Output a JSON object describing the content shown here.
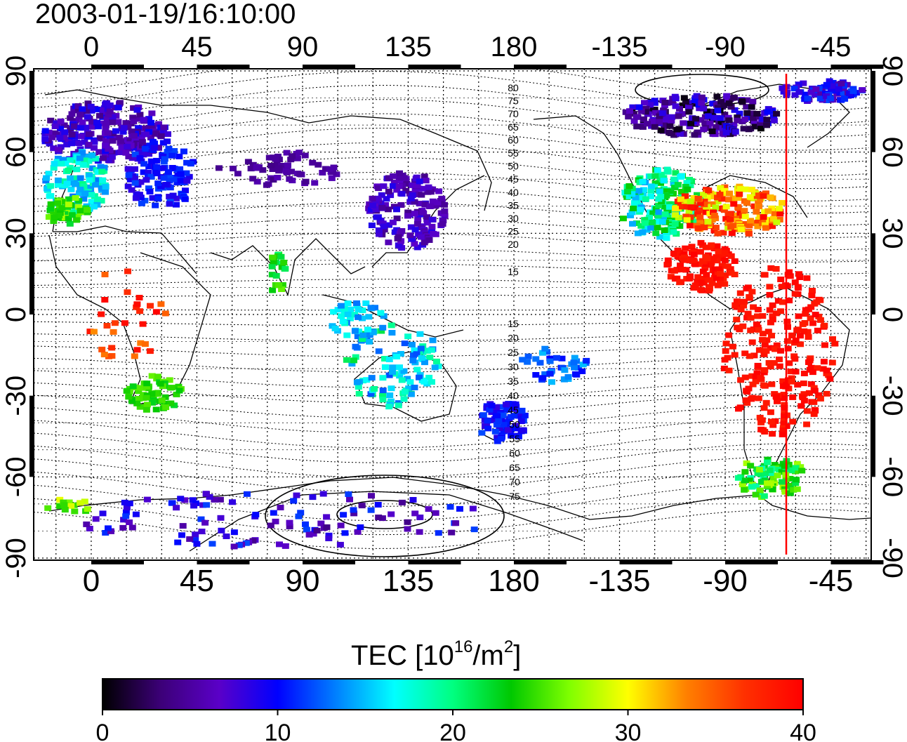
{
  "title": "2003-01-19/16:10:00",
  "map": {
    "lon_ticks": [
      "0",
      "45",
      "90",
      "135",
      "180",
      "-135",
      "-90",
      "-45"
    ],
    "lat_ticks": [
      "90",
      "60",
      "30",
      "0",
      "-30",
      "-60",
      "-90"
    ],
    "contour_labels_north": [
      "80",
      "75",
      "70",
      "65",
      "60",
      "55",
      "50",
      "45",
      "40",
      "35",
      "30",
      "25",
      "20",
      "15"
    ],
    "contour_labels_south": [
      "15",
      "20",
      "25",
      "30",
      "35",
      "40",
      "45",
      "50",
      "55",
      "60",
      "65",
      "70",
      "75"
    ],
    "terminator_line_color": "#ff0000"
  },
  "colorbar": {
    "title_main": "TEC  [10",
    "title_exp1": "16",
    "title_mid": "/m",
    "title_exp2": "2",
    "title_end": "]",
    "ticks": [
      "0",
      "10",
      "20",
      "30",
      "40"
    ],
    "range": [
      0,
      40
    ],
    "colors": [
      "#000000",
      "#3c0078",
      "#5a00c8",
      "#0000ff",
      "#0080ff",
      "#00ffff",
      "#00ff80",
      "#00c800",
      "#80ff00",
      "#ffff00",
      "#ff8000",
      "#ff3000",
      "#ff0000"
    ]
  }
}
